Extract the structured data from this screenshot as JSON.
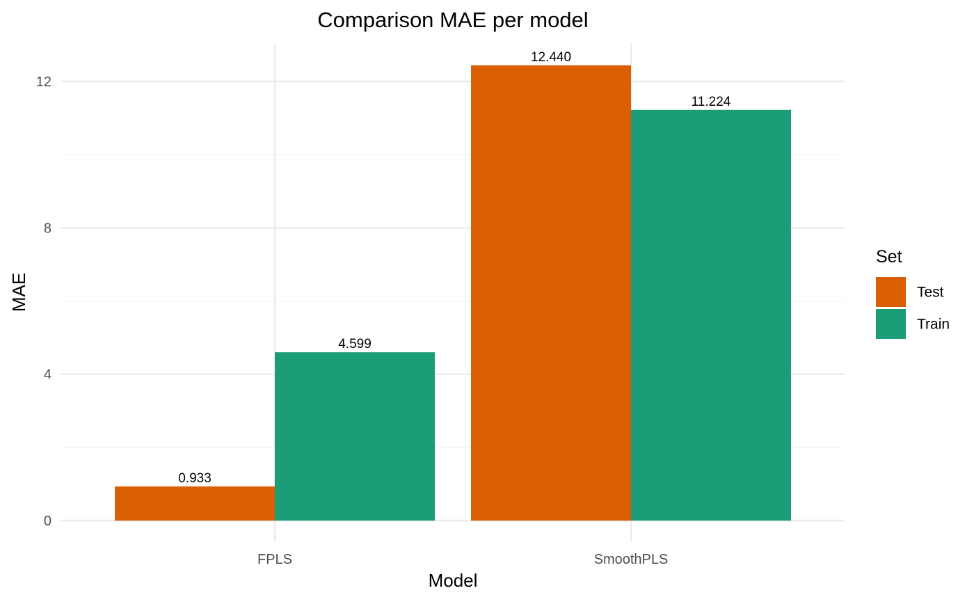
{
  "chart_data": {
    "type": "bar",
    "title": "Comparison MAE per model",
    "xlabel": "Model",
    "ylabel": "MAE",
    "categories": [
      "FPLS",
      "SmoothPLS"
    ],
    "series": [
      {
        "name": "Test",
        "color": "#D95F02",
        "values": [
          0.933,
          12.44
        ],
        "labels": [
          "0.933",
          "12.440"
        ]
      },
      {
        "name": "Train",
        "color": "#1B9E77",
        "values": [
          4.599,
          11.224
        ],
        "labels": [
          "4.599",
          "11.224"
        ]
      }
    ],
    "ylim": [
      0,
      13
    ],
    "yticks": [
      0,
      4,
      8,
      12
    ],
    "yticks_labels": [
      "0",
      "4",
      "8",
      "12"
    ],
    "grid": true,
    "legend": {
      "title": "Set",
      "position": "right"
    }
  }
}
